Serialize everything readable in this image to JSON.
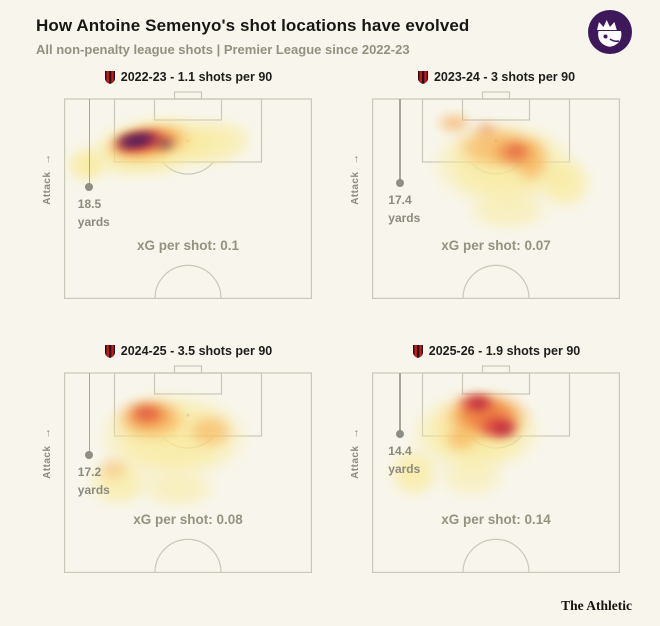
{
  "header": {
    "title": "How Antoine Semenyo's shot locations have evolved",
    "subtitle": "All non-penalty league shots | Premier League since 2022-23"
  },
  "footer": {
    "brand": "The Athletic"
  },
  "labels": {
    "attack": "Attack"
  },
  "icons": {
    "attack_arrow": "→",
    "premier_league_logo": "premier-league-lion-badge",
    "club_crest": "afc-bournemouth-crest"
  },
  "colors": {
    "background": "#f8f6ec",
    "pitch_lines": "#c9c8b8",
    "accent_purple": "#3d195b",
    "crest_red": "#d3151c",
    "muted_text": "#8b8a7e"
  },
  "chart_data": {
    "type": "heatmap",
    "title": "How Antoine Semenyo's shot locations have evolved",
    "subtitle": "All non-penalty league shots | Premier League since 2022-23",
    "layout": "2x2 small multiples, attacking half-pitch, goal at top, heat = shot density",
    "palette": {
      "yellow": "249,233,150",
      "orange": "246,166,77",
      "deepOrange": "235,110,55",
      "red": "211,50,60",
      "darkRed": "170,25,60",
      "purple": "120,25,95",
      "navy": "45,24,88"
    },
    "panels": [
      {
        "season": "2022-23",
        "shots_per_90": 1.1,
        "header": "2022-23 - 1.1 shots per 90",
        "avg_shot_distance_yards": 18.5,
        "distance_value_label": "18.5",
        "distance_unit_label": "yards",
        "xg_per_shot": 0.1,
        "xg_label": "xG per shot: 0.1",
        "marker": {
          "x_pct": 10,
          "y_pct": 44
        },
        "heat": [
          [
            36,
            24,
            80,
            44,
            -9,
            "yellow",
            0.92
          ],
          [
            9,
            33,
            24,
            26,
            0,
            "yellow",
            0.85
          ],
          [
            61,
            22,
            46,
            34,
            -9,
            "yellow",
            0.7
          ],
          [
            34,
            22,
            52,
            26,
            -9,
            "orange",
            0.8
          ],
          [
            33,
            21.5,
            40,
            17,
            -9,
            "deepOrange",
            0.85
          ],
          [
            31,
            21,
            31,
            12,
            -9,
            "red",
            0.9
          ],
          [
            30,
            20.8,
            28,
            10,
            -9,
            "purple",
            0.9
          ],
          [
            29,
            20.5,
            23,
            8,
            -9,
            "navy",
            0.95
          ],
          [
            41,
            22.5,
            11,
            6,
            -9,
            "navy",
            0.85
          ]
        ]
      },
      {
        "season": "2023-24",
        "shots_per_90": 3,
        "header": "2023-24 - 3 shots per 90",
        "avg_shot_distance_yards": 17.4,
        "distance_value_label": "17.4",
        "distance_unit_label": "yards",
        "xg_per_shot": 0.07,
        "xg_label": "xG per shot: 0.07",
        "marker": {
          "x_pct": 11,
          "y_pct": 42
        },
        "heat": [
          [
            53,
            33,
            84,
            62,
            0,
            "yellow",
            0.85
          ],
          [
            78,
            42,
            30,
            38,
            0,
            "yellow",
            0.75
          ],
          [
            55,
            56,
            50,
            28,
            0,
            "yellow",
            0.55
          ],
          [
            50,
            24,
            46,
            30,
            0,
            "orange",
            0.65
          ],
          [
            64,
            30,
            22,
            34,
            0,
            "orange",
            0.7
          ],
          [
            33,
            12,
            20,
            14,
            0,
            "orange",
            0.65
          ],
          [
            57,
            27,
            24,
            20,
            0,
            "deepOrange",
            0.6
          ],
          [
            46,
            15,
            14,
            10,
            0,
            "deepOrange",
            0.45
          ],
          [
            58,
            26,
            13,
            11,
            0,
            "red",
            0.4
          ]
        ]
      },
      {
        "season": "2024-25",
        "shots_per_90": 3.5,
        "header": "2024-25 - 3.5 shots per 90",
        "avg_shot_distance_yards": 17.2,
        "distance_value_label": "17.2",
        "distance_unit_label": "yards",
        "xg_per_shot": 0.08,
        "xg_label": "xG per shot: 0.08",
        "marker": {
          "x_pct": 10,
          "y_pct": 41
        },
        "heat": [
          [
            44,
            32,
            88,
            64,
            0,
            "yellow",
            0.85
          ],
          [
            22,
            55,
            36,
            34,
            0,
            "yellow",
            0.7
          ],
          [
            46,
            58,
            46,
            28,
            0,
            "yellow",
            0.55
          ],
          [
            35,
            23,
            42,
            30,
            0,
            "orange",
            0.75
          ],
          [
            59,
            29,
            26,
            24,
            0,
            "orange",
            0.55
          ],
          [
            34,
            21,
            26,
            18,
            0,
            "deepOrange",
            0.7
          ],
          [
            33,
            20,
            16,
            11,
            0,
            "red",
            0.55
          ],
          [
            20,
            48,
            18,
            16,
            0,
            "orange",
            0.4
          ]
        ]
      },
      {
        "season": "2025-26",
        "shots_per_90": 1.9,
        "header": "2025-26 - 1.9 shots per 90",
        "avg_shot_distance_yards": 14.4,
        "distance_value_label": "14.4",
        "distance_unit_label": "yards",
        "xg_per_shot": 0.14,
        "xg_label": "xG per shot: 0.14",
        "marker": {
          "x_pct": 11,
          "y_pct": 30.5
        },
        "heat": [
          [
            42,
            30,
            76,
            58,
            0,
            "yellow",
            0.88
          ],
          [
            17,
            50,
            30,
            36,
            0,
            "yellow",
            0.75
          ],
          [
            40,
            52,
            40,
            30,
            0,
            "yellow",
            0.5
          ],
          [
            46,
            22,
            52,
            36,
            0,
            "orange",
            0.8
          ],
          [
            36,
            33,
            20,
            18,
            0,
            "orange",
            0.6
          ],
          [
            46,
            21,
            36,
            26,
            0,
            "deepOrange",
            0.8
          ],
          [
            42,
            15,
            22,
            13,
            0,
            "red",
            0.85
          ],
          [
            51,
            27,
            24,
            16,
            0,
            "red",
            0.85
          ],
          [
            43,
            15,
            12,
            8,
            0,
            "darkRed",
            0.85
          ],
          [
            53,
            28,
            13,
            9,
            0,
            "darkRed",
            0.85
          ]
        ]
      }
    ]
  }
}
